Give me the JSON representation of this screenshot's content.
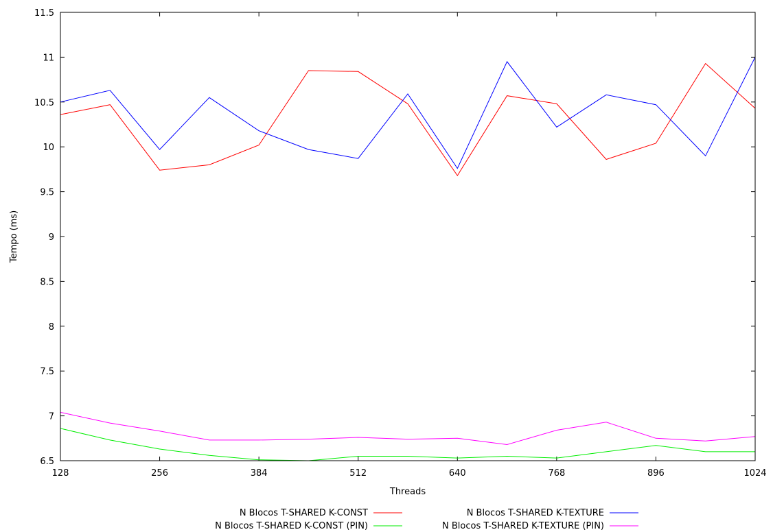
{
  "chart_data": {
    "type": "line",
    "title": "",
    "xlabel": "Threads",
    "ylabel": "Tempo (ms)",
    "xlim": [
      128,
      1024
    ],
    "ylim": [
      6.5,
      11.5
    ],
    "grid": false,
    "legend_position": "bottom",
    "x_ticks": [
      128,
      256,
      384,
      512,
      640,
      768,
      896,
      1024
    ],
    "y_ticks": [
      6.5,
      7,
      7.5,
      8,
      8.5,
      9,
      9.5,
      10,
      10.5,
      11,
      11.5
    ],
    "x": [
      128,
      192,
      256,
      320,
      384,
      448,
      512,
      576,
      640,
      704,
      768,
      832,
      896,
      960,
      1024
    ],
    "series": [
      {
        "name": "N Blocos T-SHARED  K-CONST",
        "color": "#ff0000",
        "values": [
          10.36,
          10.47,
          9.74,
          9.8,
          10.02,
          10.85,
          10.84,
          10.48,
          9.68,
          10.57,
          10.48,
          9.86,
          10.04,
          10.93,
          10.43
        ]
      },
      {
        "name": "N Blocos T-SHARED  K-TEXTURE",
        "color": "#0000ff",
        "values": [
          10.5,
          10.63,
          9.97,
          10.55,
          10.18,
          9.97,
          9.87,
          10.59,
          9.76,
          10.95,
          10.22,
          10.58,
          10.47,
          9.9,
          11.0
        ]
      },
      {
        "name": "N Blocos T-SHARED  K-CONST (PIN)",
        "color": "#00ee00",
        "values": [
          6.86,
          6.73,
          6.63,
          6.56,
          6.51,
          6.5,
          6.55,
          6.55,
          6.53,
          6.55,
          6.53,
          6.6,
          6.67,
          6.6,
          6.6
        ]
      },
      {
        "name": "N Blocos T-SHARED  K-TEXTURE (PIN)",
        "color": "#ff00ff",
        "values": [
          7.04,
          6.92,
          6.83,
          6.73,
          6.73,
          6.74,
          6.76,
          6.74,
          6.75,
          6.68,
          6.84,
          6.93,
          6.75,
          6.72,
          6.77
        ]
      }
    ]
  }
}
